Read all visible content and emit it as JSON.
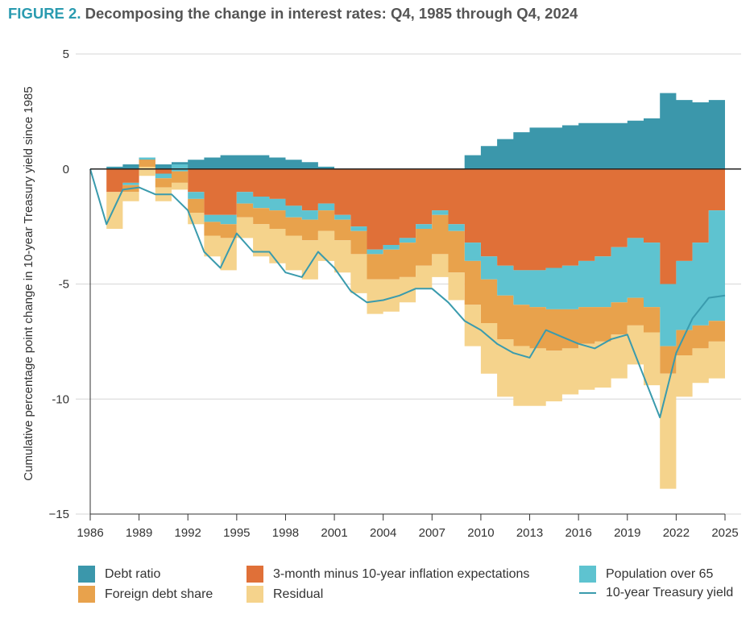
{
  "figure_label": "FIGURE 2.",
  "figure_title": "Decomposing the change in interest rates: Q4, 1985 through Q4, 2024",
  "chart_data": {
    "type": "area",
    "title": "FIGURE 2. Decomposing the change in interest rates: Q4, 1985 through Q4, 2024",
    "ylabel": "Cumulative percentage point change in 10-year Treasury yield since 1985",
    "xlabel": "",
    "ylim": [
      -15,
      5
    ],
    "yticks": [
      5,
      0,
      -5,
      -10,
      -15
    ],
    "ytick_labels": [
      "5",
      "0",
      "-5",
      "-10",
      "−15"
    ],
    "xticks": [
      "1986",
      "1989",
      "1992",
      "1995",
      "1998",
      "2001",
      "2004",
      "2007",
      "2010",
      "2013",
      "2016",
      "2019",
      "2022",
      "2025"
    ],
    "grid": true,
    "legend_position": "bottom",
    "x": [
      1986,
      1987,
      1988,
      1989,
      1990,
      1991,
      1992,
      1993,
      1994,
      1995,
      1996,
      1997,
      1998,
      1999,
      2000,
      2001,
      2002,
      2003,
      2004,
      2005,
      2006,
      2007,
      2008,
      2009,
      2010,
      2011,
      2012,
      2013,
      2014,
      2015,
      2016,
      2017,
      2018,
      2019,
      2020,
      2021,
      2022,
      2023,
      2024,
      2025
    ],
    "series": [
      {
        "name": "Debt ratio",
        "color": "#3b97ab",
        "stack": "positive",
        "values": [
          0.0,
          0.1,
          0.2,
          0.2,
          0.2,
          0.3,
          0.4,
          0.5,
          0.6,
          0.6,
          0.6,
          0.5,
          0.4,
          0.3,
          0.1,
          -0.1,
          -0.2,
          -0.2,
          -0.1,
          -0.1,
          -0.1,
          -0.1,
          0.0,
          0.6,
          1.0,
          1.3,
          1.6,
          1.8,
          1.8,
          1.9,
          2.0,
          2.0,
          2.0,
          2.1,
          2.2,
          3.3,
          3.0,
          2.9,
          3.0,
          3.1
        ]
      },
      {
        "name": "3-month minus 10-year inflation expectations",
        "color": "#e07038",
        "stack": "negative",
        "values": [
          0.0,
          -1.0,
          -0.6,
          0.5,
          -0.2,
          0.2,
          -1.0,
          -2.0,
          -2.0,
          -1.0,
          -1.2,
          -1.3,
          -1.6,
          -1.8,
          -1.5,
          -2.0,
          -2.5,
          -3.5,
          -3.3,
          -3.0,
          -2.4,
          -1.8,
          -2.4,
          -3.2,
          -3.8,
          -4.2,
          -4.4,
          -4.4,
          -4.3,
          -4.2,
          -4.0,
          -3.8,
          -3.4,
          -3.0,
          -3.2,
          -5.0,
          -4.0,
          -3.2,
          -1.8,
          -2.0
        ]
      },
      {
        "name": "Population over 65",
        "color": "#5ec3d0",
        "stack": "negative",
        "values": [
          0.0,
          0.0,
          -0.1,
          -0.1,
          -0.2,
          -0.3,
          -0.3,
          -0.3,
          -0.4,
          -0.5,
          -0.5,
          -0.5,
          -0.5,
          -0.4,
          -0.3,
          -0.2,
          -0.2,
          -0.2,
          -0.2,
          -0.2,
          -0.2,
          -0.2,
          -0.3,
          -0.8,
          -1.0,
          -1.3,
          -1.5,
          -1.6,
          -1.8,
          -1.9,
          -2.0,
          -2.2,
          -2.4,
          -2.6,
          -2.8,
          -2.7,
          -3.0,
          -3.6,
          -4.8,
          -4.9
        ]
      },
      {
        "name": "Foreign debt share",
        "color": "#e8a24c",
        "stack": "negative",
        "values": [
          0.0,
          0.0,
          -0.3,
          -0.3,
          -0.4,
          -0.5,
          -0.6,
          -0.6,
          -0.6,
          -0.6,
          -0.7,
          -0.8,
          -0.8,
          -0.9,
          -0.9,
          -0.9,
          -1.0,
          -1.1,
          -1.3,
          -1.5,
          -1.6,
          -1.7,
          -1.8,
          -1.9,
          -1.9,
          -1.9,
          -1.8,
          -1.8,
          -1.8,
          -1.7,
          -1.6,
          -1.5,
          -1.4,
          -1.2,
          -1.1,
          -1.2,
          -1.1,
          -1.0,
          -0.9,
          -0.9
        ]
      },
      {
        "name": "Residual",
        "color": "#f5d38c",
        "stack": "negative",
        "values": [
          0.0,
          -1.6,
          -0.4,
          -0.4,
          -0.6,
          -0.3,
          -0.5,
          -0.9,
          -1.4,
          -0.9,
          -1.4,
          -1.5,
          -1.5,
          -1.7,
          -1.3,
          -1.4,
          -1.7,
          -1.5,
          -1.4,
          -1.1,
          -1.0,
          -1.0,
          -1.2,
          -1.8,
          -2.2,
          -2.5,
          -2.6,
          -2.5,
          -2.2,
          -2.0,
          -2.0,
          -2.0,
          -1.9,
          -1.7,
          -2.3,
          -5.0,
          -1.8,
          -1.5,
          -1.6,
          -1.6
        ]
      },
      {
        "name": "10-year Treasury yield",
        "color": "#3a9bad",
        "type": "line",
        "values": [
          0.0,
          -2.4,
          -0.9,
          -0.8,
          -1.1,
          -1.1,
          -1.8,
          -3.6,
          -4.3,
          -2.8,
          -3.6,
          -3.6,
          -4.5,
          -4.7,
          -3.6,
          -4.3,
          -5.3,
          -5.8,
          -5.7,
          -5.5,
          -5.2,
          -5.2,
          -5.8,
          -6.6,
          -7.0,
          -7.6,
          -8.0,
          -8.2,
          -7.0,
          -7.3,
          -7.6,
          -7.8,
          -7.4,
          -7.2,
          -9.0,
          -10.8,
          -8.0,
          -6.5,
          -5.6,
          -5.5
        ]
      }
    ]
  },
  "legend": [
    {
      "label": "Debt ratio",
      "color": "#3b97ab",
      "kind": "box"
    },
    {
      "label": "3-month minus 10-year inflation expectations",
      "color": "#e07038",
      "kind": "box"
    },
    {
      "label": "Population over 65",
      "color": "#5ec3d0",
      "kind": "box"
    },
    {
      "label": "Foreign debt share",
      "color": "#e8a24c",
      "kind": "box"
    },
    {
      "label": "Residual",
      "color": "#f5d38c",
      "kind": "box"
    },
    {
      "label": "10-year Treasury yield",
      "color": "#3a9bad",
      "kind": "line"
    }
  ]
}
